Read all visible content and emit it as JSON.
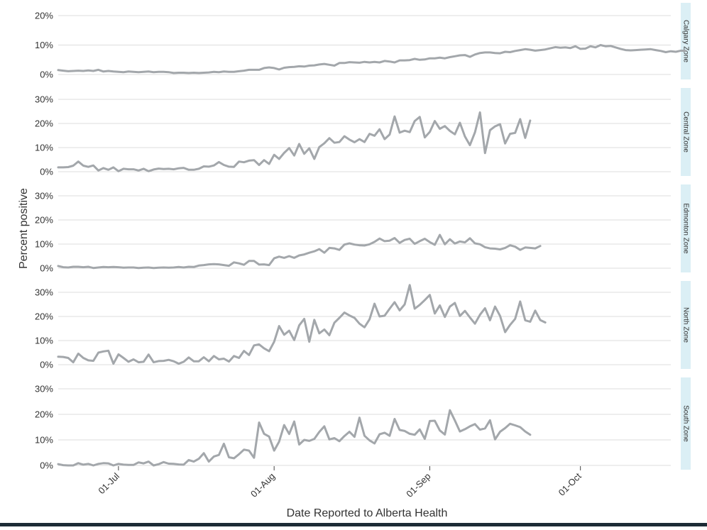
{
  "colors": {
    "line": "#a3a7ab",
    "grid": "#dddddd",
    "strip": "#dbeff5",
    "text": "#333333"
  },
  "axes": {
    "ylabel": "Percent positive",
    "xlabel": "Date Reported to Alberta Health",
    "x_ticks": [
      "01-Jul",
      "01-Aug",
      "01-Sep",
      "01-Oct"
    ]
  },
  "chart_data": {
    "type": "line",
    "ylabel": "Percent positive",
    "xlabel": "Date Reported to Alberta Health",
    "x_start": "2020-06-19",
    "x_range": [
      "2020-06-19",
      "2020-10-19"
    ],
    "x_ticks": [
      "2020-07-01",
      "2020-08-01",
      "2020-09-01",
      "2020-10-01"
    ],
    "grid": true,
    "panels": [
      {
        "name": "Calgary Zone",
        "ylim": [
          0,
          20
        ],
        "yticks": [
          0,
          10,
          20
        ],
        "tick_labels": [
          "0%",
          "10%",
          "20%"
        ],
        "values": [
          1.5,
          1.3,
          1.1,
          1.2,
          1.3,
          1.2,
          1.4,
          1.2,
          1.6,
          1.0,
          1.2,
          1.0,
          0.9,
          0.8,
          1.0,
          0.9,
          0.8,
          0.9,
          1.0,
          0.8,
          0.9,
          0.9,
          0.8,
          0.5,
          0.6,
          0.6,
          0.5,
          0.6,
          0.5,
          0.6,
          0.7,
          0.9,
          0.8,
          1.0,
          0.9,
          0.9,
          1.1,
          1.3,
          1.6,
          1.6,
          1.6,
          2.2,
          2.4,
          2.2,
          1.7,
          2.3,
          2.5,
          2.6,
          2.8,
          2.7,
          3.0,
          3.1,
          3.4,
          3.6,
          3.3,
          3.0,
          3.9,
          3.9,
          4.2,
          4.1,
          4.0,
          4.3,
          4.1,
          4.3,
          4.1,
          4.6,
          4.4,
          4.1,
          4.8,
          4.8,
          4.9,
          5.3,
          5.0,
          5.1,
          5.5,
          5.5,
          5.7,
          5.5,
          5.9,
          6.2,
          6.5,
          6.6,
          6.0,
          6.8,
          7.3,
          7.5,
          7.5,
          7.3,
          7.2,
          7.7,
          7.6,
          8.0,
          8.3,
          8.6,
          8.4,
          8.1,
          8.3,
          8.5,
          8.9,
          9.3,
          9.1,
          9.2,
          9.0,
          9.6,
          8.7,
          8.8,
          9.6,
          9.2,
          10.0,
          9.6,
          9.7,
          9.2,
          8.7,
          8.3,
          8.2,
          8.3,
          8.4,
          8.5,
          8.6,
          8.3,
          8.0,
          7.6,
          7.9,
          7.7,
          8.1,
          8.0
        ]
      },
      {
        "name": "Central Zone",
        "ylim": [
          0,
          30
        ],
        "yticks": [
          0,
          10,
          20,
          30
        ],
        "tick_labels": [
          "0%",
          "10%",
          "20%",
          "30%"
        ],
        "values": [
          1.8,
          1.8,
          1.9,
          2.5,
          4.2,
          2.5,
          2.0,
          2.6,
          0.5,
          1.5,
          0.8,
          1.8,
          0.2,
          1.2,
          1.0,
          1.0,
          0.5,
          1.2,
          0.2,
          0.9,
          1.3,
          1.1,
          1.2,
          1.0,
          1.4,
          1.6,
          0.8,
          0.8,
          1.2,
          2.2,
          2.1,
          2.6,
          4.0,
          2.8,
          2.1,
          2.0,
          4.2,
          3.9,
          4.6,
          4.8,
          2.8,
          4.8,
          3.2,
          7.0,
          5.3,
          7.8,
          9.8,
          6.7,
          11.5,
          7.4,
          9.7,
          5.3,
          10.2,
          11.8,
          13.9,
          12.0,
          12.3,
          14.7,
          13.3,
          12.2,
          13.5,
          12.3,
          15.7,
          14.9,
          17.6,
          13.5,
          15.4,
          22.9,
          16.2,
          17.0,
          16.4,
          21.0,
          22.7,
          14.2,
          16.5,
          21.0,
          17.8,
          18.9,
          16.9,
          15.5,
          20.3,
          14.6,
          11.0,
          16.3,
          24.6,
          7.7,
          17.2,
          18.8,
          19.7,
          11.7,
          15.7,
          16.1,
          21.8,
          14.0,
          21.2
        ]
      },
      {
        "name": "Edmonton Zone",
        "ylim": [
          0,
          30
        ],
        "yticks": [
          0,
          10,
          20,
          30
        ],
        "tick_labels": [
          "0%",
          "10%",
          "20%",
          "30%"
        ],
        "values": [
          0.9,
          0.4,
          0.3,
          0.6,
          0.6,
          0.4,
          0.6,
          0.1,
          0.3,
          0.5,
          0.4,
          0.5,
          0.4,
          0.2,
          0.3,
          0.3,
          0.1,
          0.2,
          0.3,
          0.1,
          0.2,
          0.3,
          0.2,
          0.3,
          0.5,
          0.3,
          0.6,
          0.5,
          1.1,
          1.3,
          1.6,
          1.7,
          1.6,
          1.3,
          1.0,
          2.4,
          2.0,
          1.4,
          3.0,
          3.0,
          1.5,
          1.6,
          1.3,
          4.1,
          4.8,
          4.3,
          5.0,
          4.3,
          5.3,
          5.7,
          6.4,
          7.0,
          7.9,
          6.4,
          8.4,
          8.2,
          7.6,
          9.8,
          10.3,
          9.8,
          9.5,
          9.4,
          9.9,
          10.9,
          12.3,
          11.2,
          11.4,
          12.5,
          10.5,
          11.7,
          12.2,
          10.1,
          11.2,
          12.2,
          10.8,
          9.7,
          13.8,
          9.9,
          12.0,
          10.2,
          11.1,
          10.7,
          12.4,
          10.3,
          9.9,
          8.7,
          8.2,
          8.1,
          7.8,
          8.4,
          9.5,
          8.9,
          7.6,
          8.6,
          8.4,
          8.2,
          9.2
        ]
      },
      {
        "name": "North Zone",
        "ylim": [
          0,
          30
        ],
        "yticks": [
          0,
          10,
          20,
          30
        ],
        "tick_labels": [
          "0%",
          "10%",
          "20%",
          "30%"
        ],
        "values": [
          3.3,
          3.2,
          2.8,
          1.0,
          4.6,
          2.8,
          1.8,
          1.6,
          5.0,
          5.5,
          5.8,
          0.4,
          4.3,
          2.8,
          1.2,
          2.2,
          1.0,
          1.2,
          4.2,
          1.0,
          1.5,
          1.6,
          2.0,
          1.4,
          0.4,
          1.2,
          3.0,
          1.4,
          1.4,
          3.1,
          1.4,
          3.6,
          2.2,
          2.5,
          1.3,
          3.6,
          2.8,
          5.7,
          4.0,
          8.0,
          8.4,
          6.8,
          5.6,
          9.5,
          16.0,
          12.4,
          14.1,
          10.2,
          16.3,
          19.0,
          9.5,
          18.6,
          13.0,
          14.6,
          12.2,
          17.4,
          19.4,
          21.6,
          20.4,
          19.4,
          17.0,
          15.5,
          18.8,
          25.3,
          20.0,
          20.3,
          23.2,
          25.9,
          22.5,
          25.0,
          33.0,
          23.2,
          24.8,
          26.8,
          28.9,
          21.2,
          24.6,
          19.8,
          24.1,
          25.6,
          20.2,
          22.3,
          19.6,
          17.0,
          20.7,
          23.4,
          18.4,
          24.1,
          20.2,
          13.5,
          16.5,
          19.0,
          26.2,
          18.4,
          17.8,
          22.4,
          18.5,
          17.5
        ]
      },
      {
        "name": "South Zone",
        "ylim": [
          0,
          30
        ],
        "yticks": [
          0,
          10,
          20,
          30
        ],
        "tick_labels": [
          "0%",
          "10%",
          "20%",
          "30%"
        ],
        "values": [
          0.5,
          0.1,
          0.0,
          0.0,
          0.9,
          0.3,
          0.6,
          0.0,
          0.6,
          0.9,
          0.8,
          0.0,
          0.6,
          0.3,
          0.2,
          0.2,
          1.2,
          0.8,
          1.5,
          0.0,
          0.5,
          1.3,
          0.7,
          0.6,
          0.4,
          0.3,
          2.1,
          1.5,
          2.6,
          4.8,
          1.5,
          3.5,
          4.1,
          8.5,
          3.2,
          2.8,
          4.4,
          6.2,
          5.8,
          3.0,
          16.8,
          12.4,
          11.3,
          5.8,
          9.3,
          15.8,
          12.3,
          17.2,
          8.2,
          10.0,
          9.6,
          10.4,
          13.1,
          15.3,
          10.2,
          10.7,
          9.5,
          11.5,
          13.2,
          11.2,
          18.7,
          11.6,
          9.8,
          8.6,
          12.2,
          12.8,
          11.6,
          18.2,
          13.9,
          13.5,
          12.4,
          12.0,
          14.1,
          10.4,
          17.4,
          17.5,
          13.7,
          12.1,
          21.6,
          17.6,
          13.3,
          14.2,
          15.3,
          16.2,
          14.0,
          14.5,
          17.7,
          10.2,
          13.2,
          14.6,
          16.3,
          15.7,
          15.0,
          13.3,
          12.0
        ]
      }
    ]
  }
}
